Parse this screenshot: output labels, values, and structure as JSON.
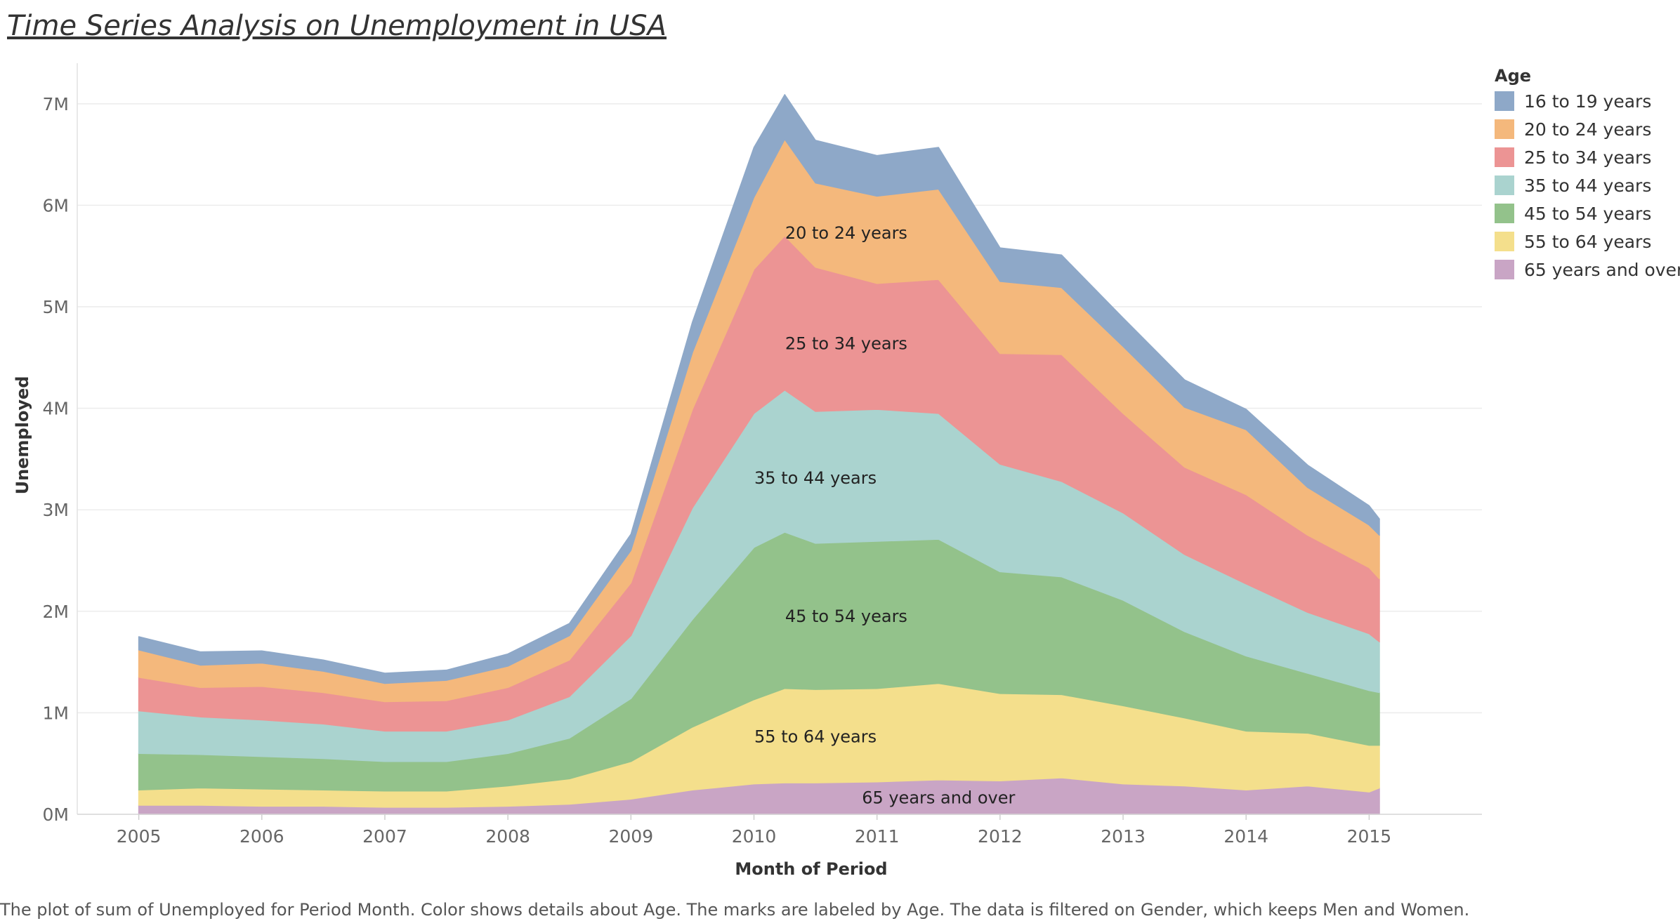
{
  "title": "Time Series Analysis on Unemployment in USA",
  "caption": "The plot of sum of Unemployed for Period Month.  Color shows details about Age.  The marks are labeled by Age. The data is filtered on Gender, which keeps Men and Women.",
  "chart_data": {
    "type": "area",
    "stacked": true,
    "xlabel": "Month of Period",
    "ylabel": "Unemployed",
    "x_ticks": [
      "2005",
      "2006",
      "2007",
      "2008",
      "2009",
      "2010",
      "2011",
      "2012",
      "2013",
      "2014",
      "2015"
    ],
    "y_ticks": [
      "0M",
      "1M",
      "2M",
      "3M",
      "4M",
      "5M",
      "6M",
      "7M"
    ],
    "ylim": [
      0,
      7400000
    ],
    "xlim": [
      "2004-07",
      "2015-12"
    ],
    "grid": true,
    "legend": {
      "title": "Age",
      "position": "right"
    },
    "x": [
      "2005-01",
      "2005-07",
      "2006-01",
      "2006-07",
      "2007-01",
      "2007-07",
      "2008-01",
      "2008-07",
      "2009-01",
      "2009-07",
      "2010-01",
      "2010-04",
      "2010-07",
      "2011-01",
      "2011-07",
      "2012-01",
      "2012-07",
      "2013-01",
      "2013-07",
      "2014-01",
      "2014-07",
      "2015-01",
      "2015-02"
    ],
    "series": [
      {
        "name": "65 years and over",
        "color": "#c9a5c5",
        "label_on_chart": true,
        "values": [
          90000,
          90000,
          80000,
          80000,
          70000,
          70000,
          80000,
          100000,
          150000,
          240000,
          300000,
          310000,
          310000,
          320000,
          340000,
          330000,
          360000,
          300000,
          280000,
          240000,
          280000,
          220000,
          260000
        ]
      },
      {
        "name": "55 to 64 years",
        "color": "#f4df8c",
        "label_on_chart": true,
        "values": [
          150000,
          170000,
          170000,
          160000,
          160000,
          160000,
          200000,
          250000,
          370000,
          620000,
          830000,
          930000,
          920000,
          920000,
          950000,
          860000,
          820000,
          770000,
          670000,
          580000,
          520000,
          460000,
          420000
        ]
      },
      {
        "name": "45 to 54 years",
        "color": "#93c28b",
        "label_on_chart": true,
        "values": [
          360000,
          330000,
          320000,
          310000,
          290000,
          290000,
          320000,
          400000,
          620000,
          1060000,
          1500000,
          1540000,
          1440000,
          1450000,
          1420000,
          1200000,
          1160000,
          1040000,
          850000,
          740000,
          590000,
          540000,
          520000
        ]
      },
      {
        "name": "35 to 44 years",
        "color": "#aad3cf",
        "label_on_chart": true,
        "values": [
          420000,
          370000,
          360000,
          340000,
          300000,
          300000,
          330000,
          410000,
          620000,
          1100000,
          1320000,
          1400000,
          1300000,
          1300000,
          1240000,
          1060000,
          940000,
          860000,
          760000,
          710000,
          600000,
          560000,
          500000
        ]
      },
      {
        "name": "25 to 34 years",
        "color": "#ec9494",
        "label_on_chart": true,
        "values": [
          330000,
          290000,
          330000,
          310000,
          290000,
          300000,
          320000,
          360000,
          520000,
          970000,
          1420000,
          1520000,
          1420000,
          1240000,
          1320000,
          1090000,
          1250000,
          980000,
          860000,
          880000,
          760000,
          650000,
          620000
        ]
      },
      {
        "name": "20 to 24 years",
        "color": "#f4b87c",
        "label_on_chart": true,
        "values": [
          270000,
          220000,
          230000,
          210000,
          180000,
          200000,
          210000,
          240000,
          320000,
          560000,
          710000,
          950000,
          830000,
          860000,
          890000,
          710000,
          660000,
          660000,
          590000,
          640000,
          470000,
          420000,
          430000
        ]
      },
      {
        "name": "16 to 19 years",
        "color": "#8ea8c8",
        "label_on_chart": false,
        "values": [
          130000,
          130000,
          120000,
          110000,
          100000,
          100000,
          120000,
          120000,
          160000,
          300000,
          490000,
          440000,
          420000,
          400000,
          410000,
          330000,
          320000,
          280000,
          270000,
          200000,
          220000,
          190000,
          160000
        ]
      }
    ]
  }
}
